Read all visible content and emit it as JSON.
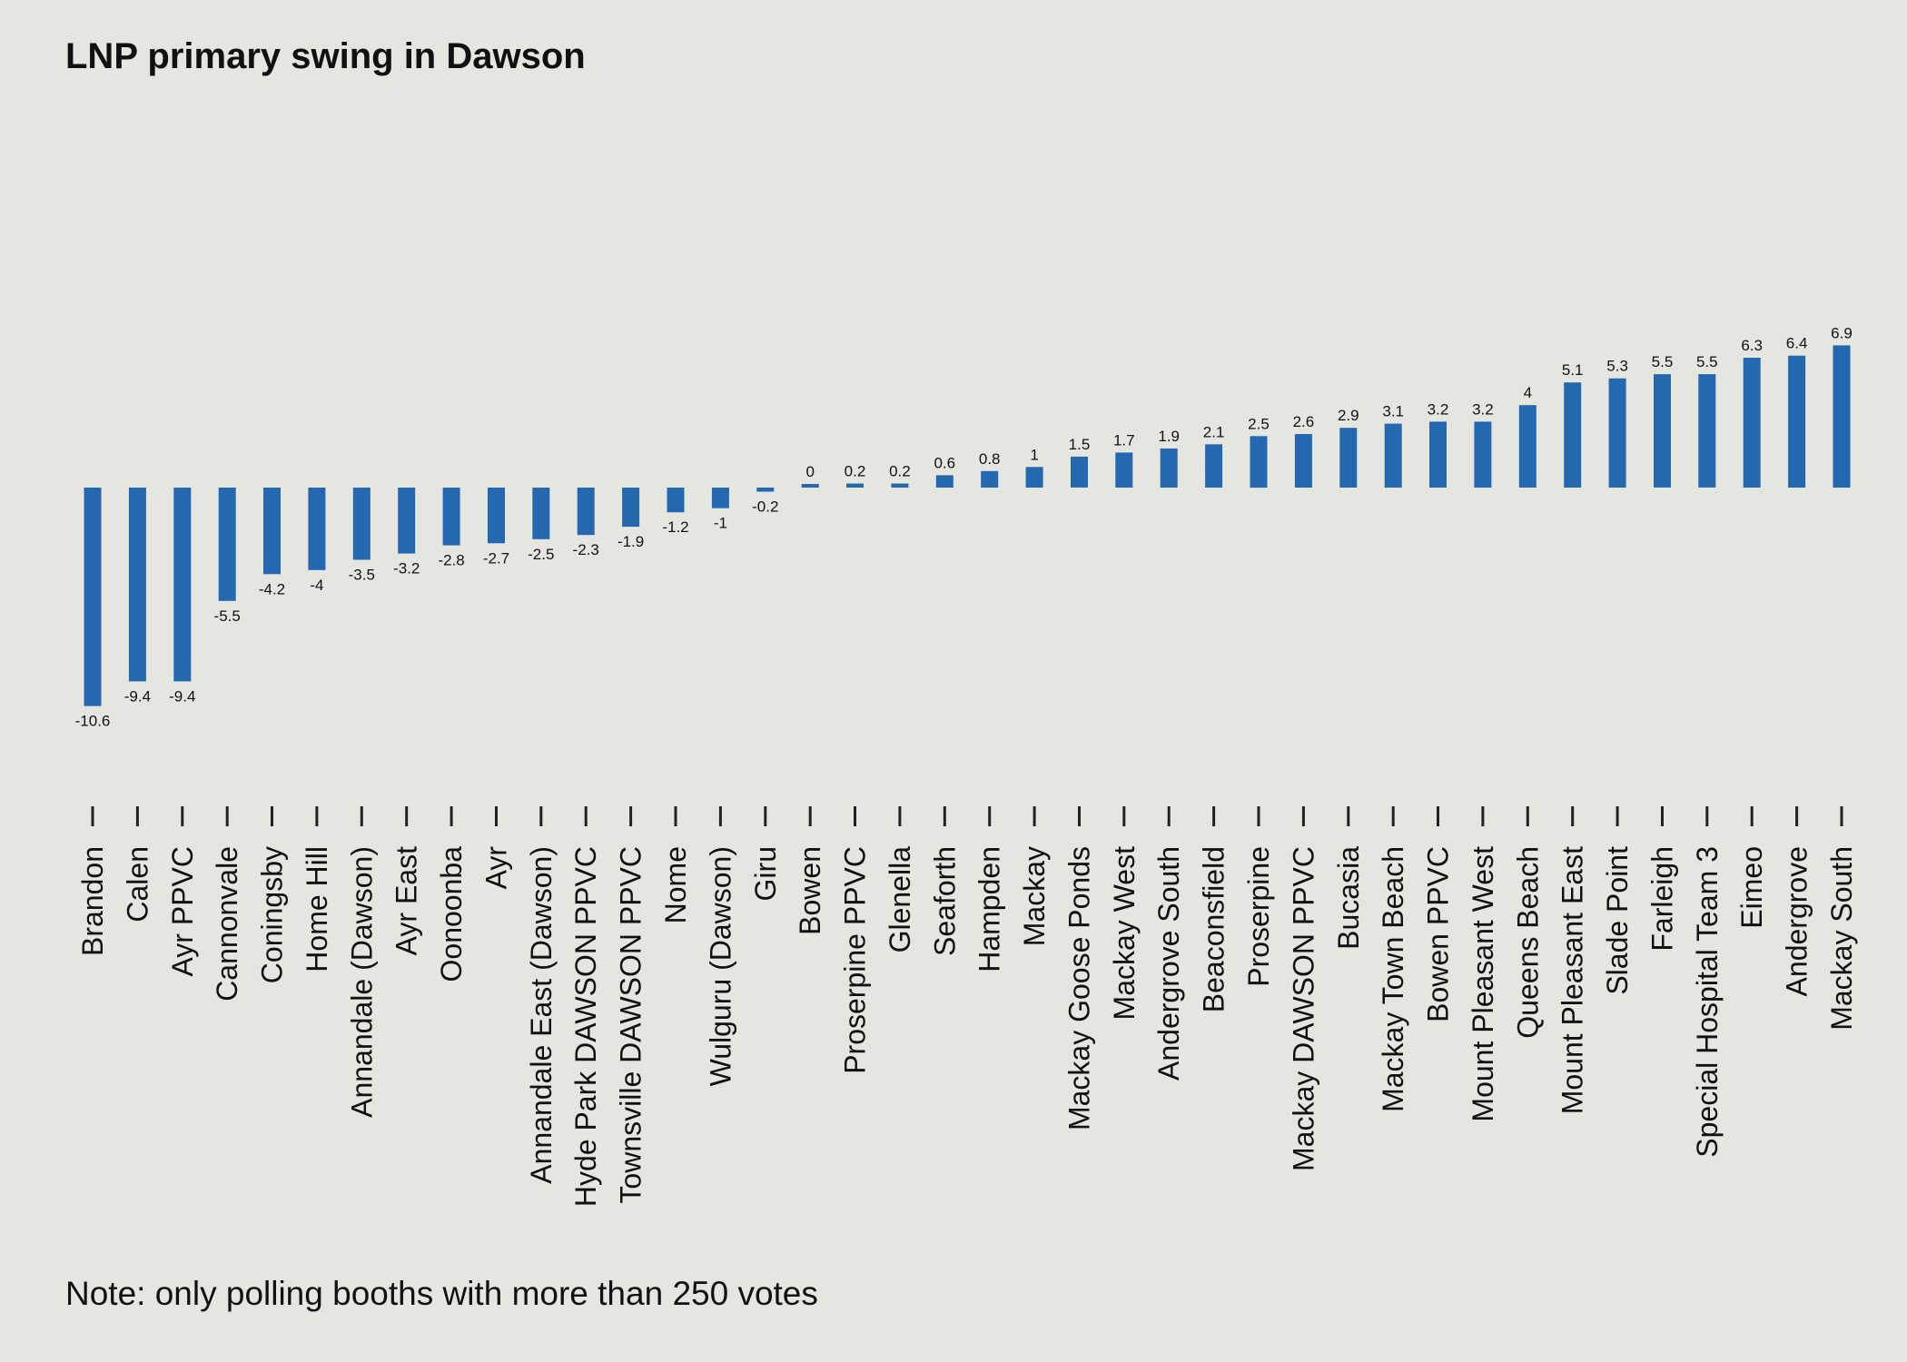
{
  "chart_data": {
    "type": "bar",
    "title": "LNP primary swing in Dawson",
    "note": "Note: only polling booths with more than 250 votes",
    "xlabel": "",
    "ylabel": "",
    "ylim": [
      -14.5,
      14.5
    ],
    "grid": false,
    "legend": "none",
    "bar_color": "#2468b0",
    "categories": [
      "Brandon",
      "Calen",
      "Ayr PPVC",
      "Cannonvale",
      "Coningsby",
      "Home Hill",
      "Annandale (Dawson)",
      "Ayr East",
      "Oonoonba",
      "Ayr",
      "Annandale East (Dawson)",
      "Hyde Park DAWSON PPVC",
      "Townsville DAWSON PPVC",
      "Nome",
      "Wulguru (Dawson)",
      "Giru",
      "Bowen",
      "Proserpine PPVC",
      "Glenella",
      "Seaforth",
      "Hampden",
      "Mackay",
      "Mackay Goose Ponds",
      "Mackay West",
      "Andergrove South",
      "Beaconsfield",
      "Proserpine",
      "Mackay DAWSON PPVC",
      "Bucasia",
      "Mackay Town Beach",
      "Bowen PPVC",
      "Mount Pleasant West",
      "Queens Beach",
      "Mount Pleasant East",
      "Slade Point",
      "Farleigh",
      "Special Hospital Team 3",
      "Eimeo",
      "Andergrove",
      "Mackay South"
    ],
    "values": [
      -10.6,
      -9.4,
      -9.4,
      -5.5,
      -4.2,
      -4,
      -3.5,
      -3.2,
      -2.8,
      -2.7,
      -2.5,
      -2.3,
      -1.9,
      -1.2,
      -1,
      -0.2,
      0,
      0.2,
      0.2,
      0.6,
      0.8,
      1,
      1.5,
      1.7,
      1.9,
      2.1,
      2.5,
      2.6,
      2.9,
      3.1,
      3.2,
      3.2,
      4,
      5.1,
      5.3,
      5.5,
      5.5,
      6.3,
      6.4,
      6.9
    ]
  }
}
